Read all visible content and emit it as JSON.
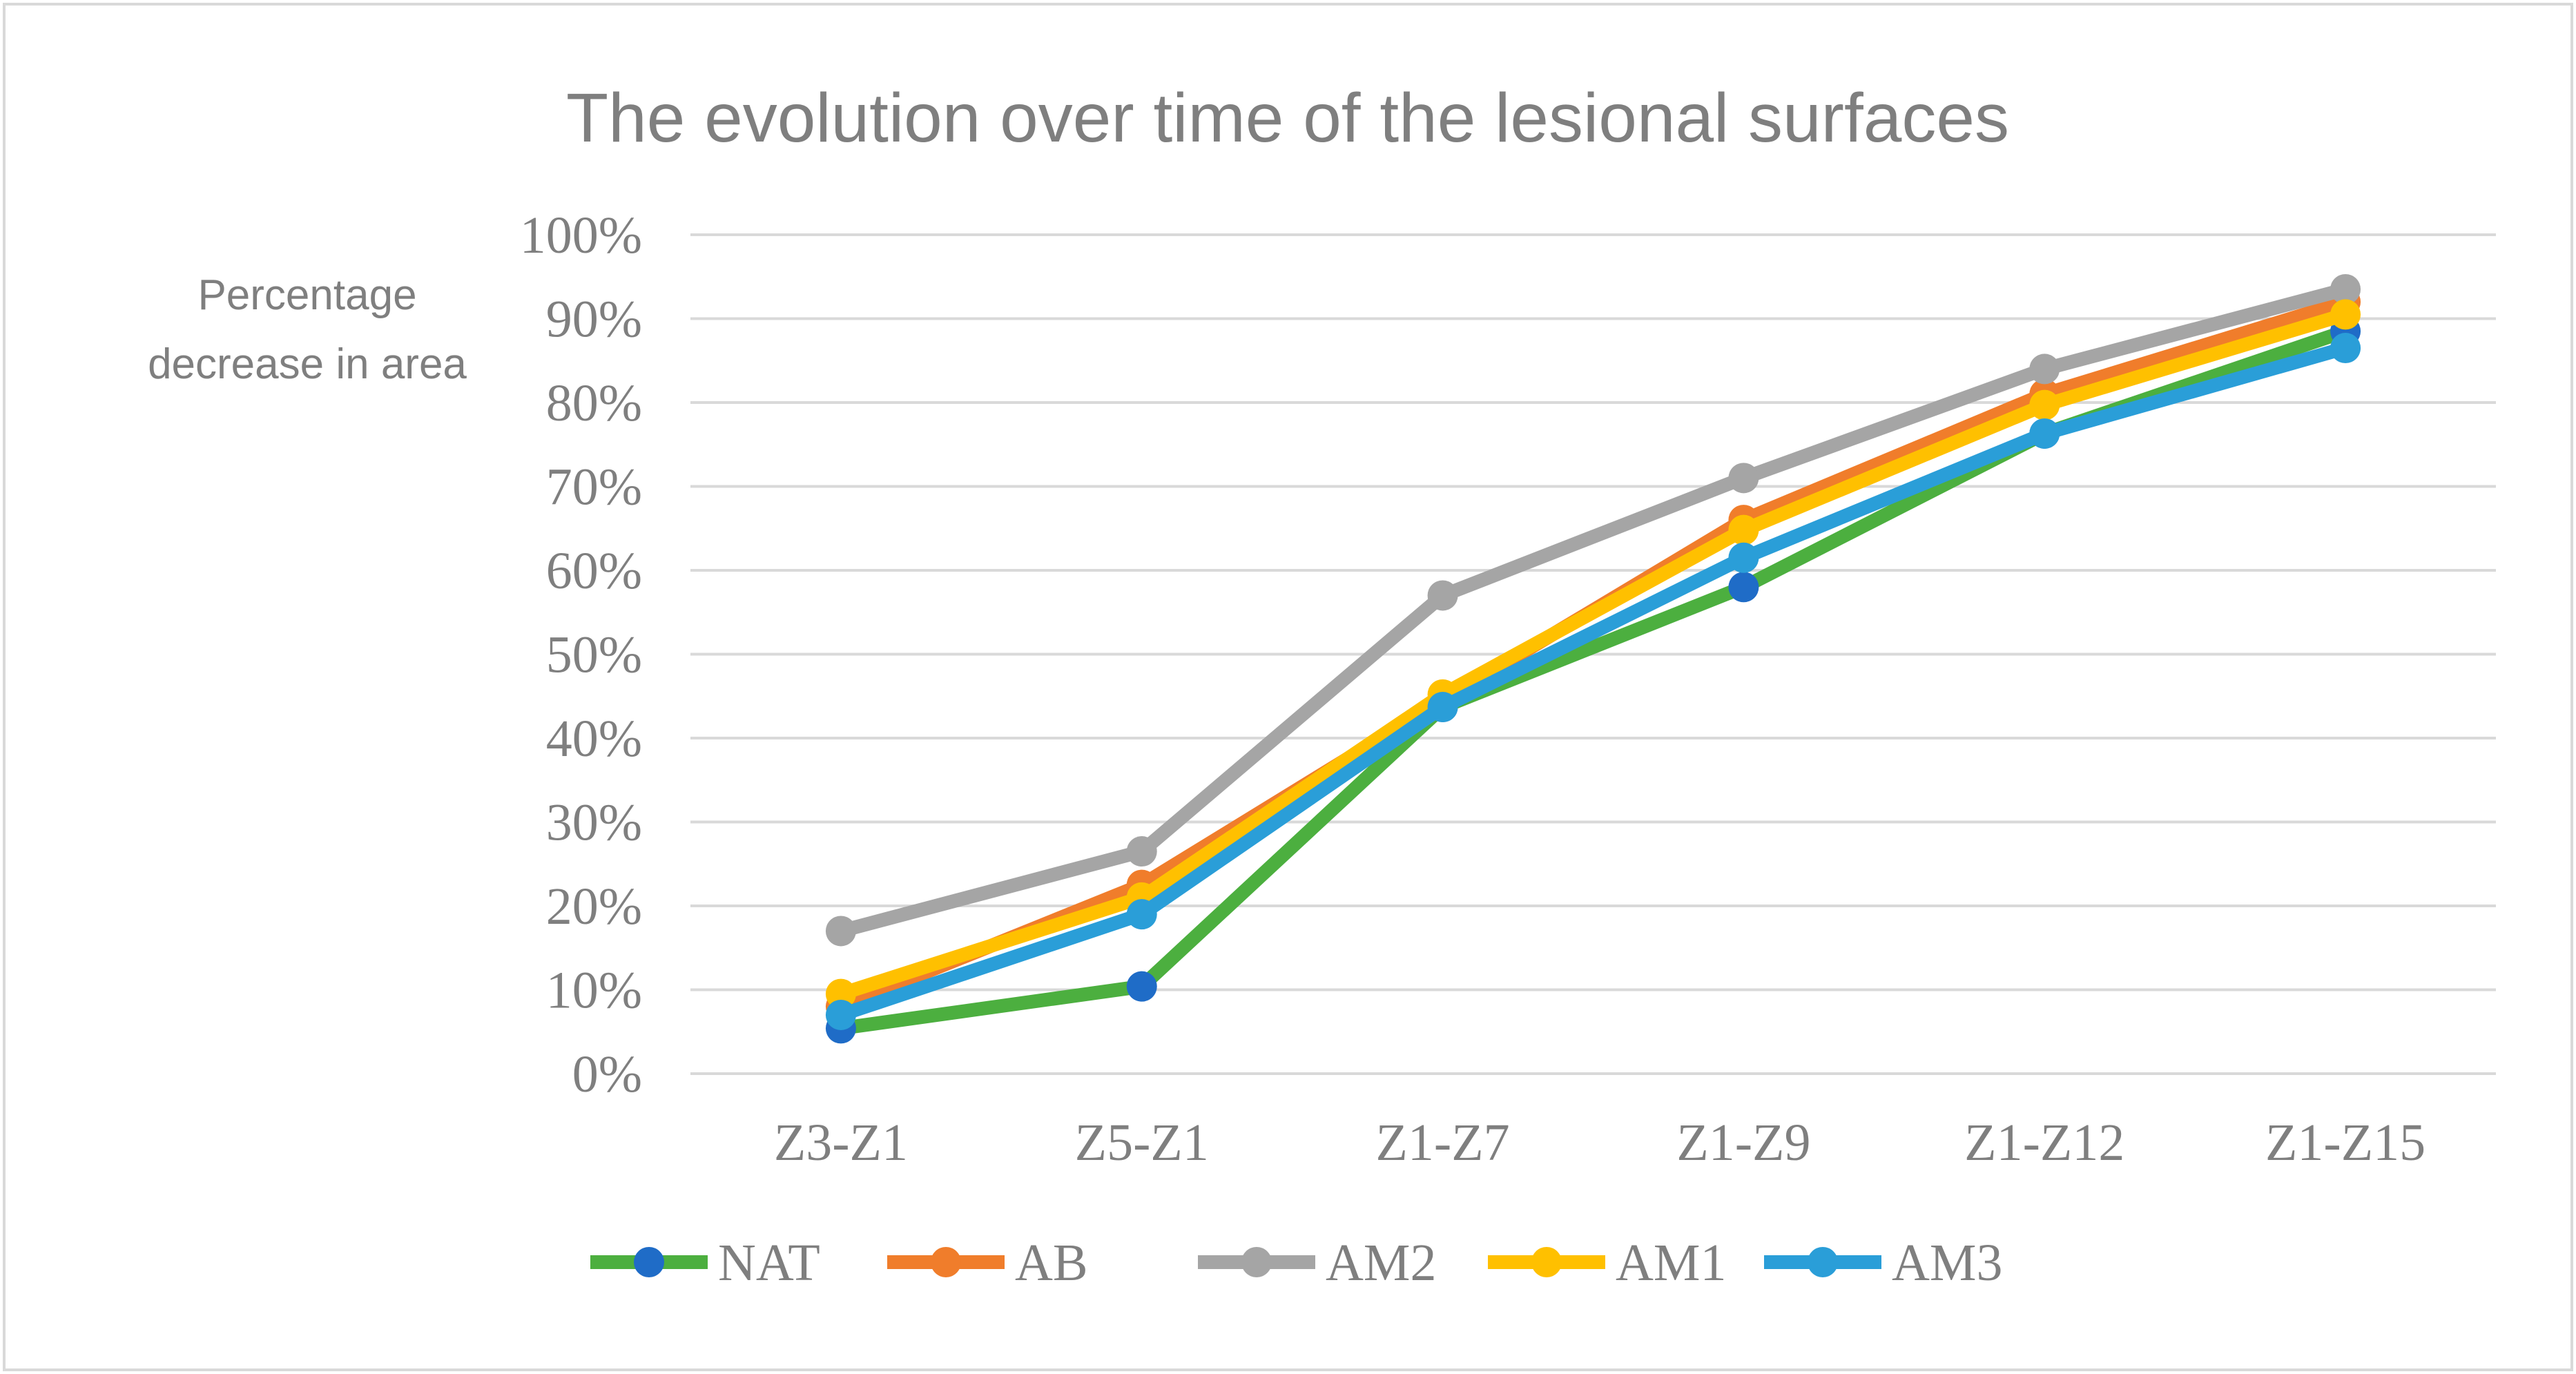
{
  "chart_data": {
    "type": "line",
    "title": "The evolution over time of the lesional surfaces",
    "xlabel": "",
    "ylabel": "Percentage decrease in area",
    "ylim": [
      0,
      1
    ],
    "y_ticks": [
      "0%",
      "10%",
      "20%",
      "30%",
      "40%",
      "50%",
      "60%",
      "70%",
      "80%",
      "90%",
      "100%"
    ],
    "y_tick_values": [
      0,
      0.1,
      0.2,
      0.3,
      0.4,
      0.5,
      0.6,
      0.7,
      0.8,
      0.9,
      1.0
    ],
    "categories": [
      "Z3-Z1",
      "Z5-Z1",
      "Z1-Z7",
      "Z1-Z9",
      "Z1-Z12",
      "Z1-Z15"
    ],
    "grid": true,
    "legend_position": "bottom",
    "series": [
      {
        "name": "NAT",
        "line_color": "#4caf3f",
        "marker_color": "#1f6cc7",
        "values": [
          0.054,
          0.104,
          0.437,
          0.58,
          0.763,
          0.885
        ]
      },
      {
        "name": "AB",
        "line_color": "#f07d2b",
        "marker_color": "#f07d2b",
        "values": [
          0.08,
          0.225,
          0.445,
          0.66,
          0.81,
          0.92
        ]
      },
      {
        "name": "AM2",
        "line_color": "#a5a5a5",
        "marker_color": "#a5a5a5",
        "values": [
          0.17,
          0.265,
          0.57,
          0.71,
          0.84,
          0.935
        ]
      },
      {
        "name": "AM1",
        "line_color": "#ffc000",
        "marker_color": "#ffc000",
        "values": [
          0.095,
          0.21,
          0.452,
          0.648,
          0.797,
          0.905
        ]
      },
      {
        "name": "AM3",
        "line_color": "#2a9ed8",
        "marker_color": "#2a9ed8",
        "values": [
          0.07,
          0.19,
          0.437,
          0.615,
          0.763,
          0.865
        ]
      }
    ]
  }
}
